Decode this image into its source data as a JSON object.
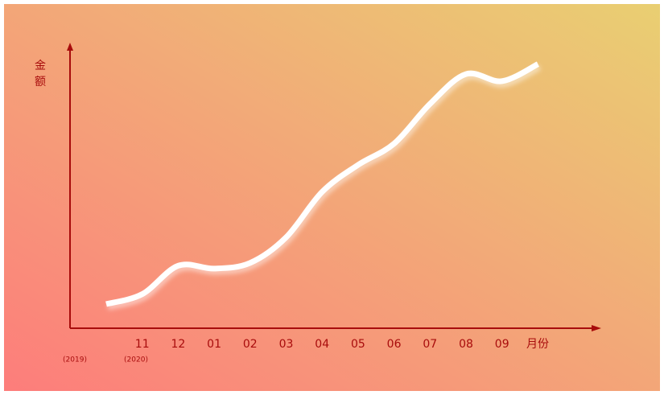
{
  "chart_data": {
    "type": "line",
    "y_label": "金额",
    "x_label": "月份",
    "annotations": [
      "(2019)",
      "(2020)"
    ],
    "categories": [
      null,
      "11",
      "12",
      "01",
      "02",
      "03",
      "04",
      "05",
      "06",
      "07",
      "08",
      "09",
      null
    ],
    "series": [
      {
        "color": "#ffffff",
        "values": [
          8.5,
          12,
          22,
          21,
          23,
          32,
          48,
          57.5,
          65,
          79,
          89.5,
          87,
          93
        ]
      }
    ],
    "ylim": [
      0,
      100
    ],
    "axis_color": "#a80c0c"
  }
}
